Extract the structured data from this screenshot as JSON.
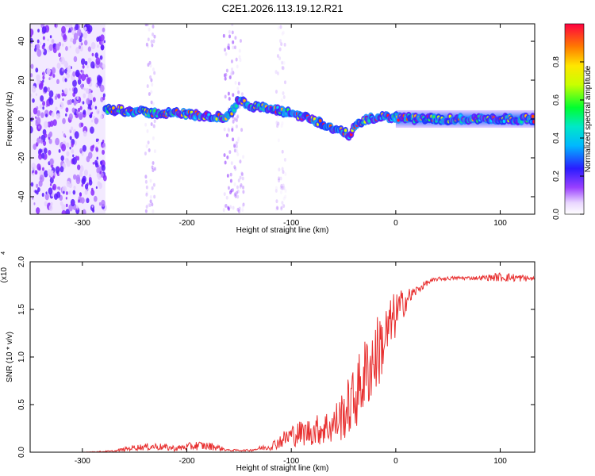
{
  "title": "C2E1.2026.113.19.12.R21",
  "colors": {
    "snr_line": "#e83030",
    "axis": "#000000",
    "background": "#ffffff"
  },
  "chart_data": [
    {
      "type": "heatmap",
      "name": "spectrogram",
      "xlabel": "Height of straight line (km)",
      "ylabel": "Frequency (Hz)",
      "xlim": [
        -350,
        133
      ],
      "ylim": [
        -49,
        49
      ],
      "x_ticks": [
        -300,
        -200,
        -100,
        0,
        100
      ],
      "y_ticks": [
        -40,
        -20,
        0,
        20,
        40
      ],
      "noise_region_x": [
        -350,
        -278
      ],
      "signal_track": {
        "x": [
          -278,
          -250,
          -230,
          -210,
          -190,
          -175,
          -160,
          -150,
          -140,
          -120,
          -100,
          -80,
          -60,
          -45,
          -35,
          -25,
          -15,
          0,
          20,
          60,
          100,
          133
        ],
        "freq": [
          5,
          4,
          3,
          3,
          2,
          1,
          1,
          10,
          7,
          5,
          3,
          0,
          -5,
          -8,
          -2,
          0,
          1,
          1,
          0,
          0,
          0,
          0
        ]
      },
      "colorbar": {
        "label": "Normalized spectral amplitude",
        "range": [
          0,
          1
        ],
        "ticks": [
          0.0,
          0.2,
          0.4,
          0.6,
          0.8
        ]
      }
    },
    {
      "type": "line",
      "name": "snr",
      "xlabel": "Height of straight line (km)",
      "ylabel": "SNR (10 * v/v)",
      "multiplier_label": "(x10",
      "multiplier_exp": "4",
      "xlim": [
        -350,
        133
      ],
      "ylim": [
        0,
        2.0
      ],
      "x_ticks": [
        -300,
        -200,
        -100,
        0,
        100
      ],
      "y_ticks": [
        0.0,
        0.5,
        1.0,
        1.5,
        2.0
      ],
      "series": [
        {
          "name": "SNR",
          "x": [
            -350,
            -300,
            -270,
            -250,
            -230,
            -210,
            -190,
            -175,
            -160,
            -140,
            -120,
            -110,
            -100,
            -90,
            -80,
            -70,
            -60,
            -50,
            -40,
            -30,
            -20,
            -10,
            0,
            10,
            20,
            30,
            40,
            60,
            80,
            100,
            120,
            133
          ],
          "values": [
            0.0,
            0.0,
            0.01,
            0.05,
            0.06,
            0.04,
            0.07,
            0.06,
            0.02,
            0.02,
            0.06,
            0.12,
            0.18,
            0.2,
            0.22,
            0.25,
            0.28,
            0.4,
            0.55,
            0.8,
            1.0,
            1.2,
            1.45,
            1.6,
            1.7,
            1.78,
            1.82,
            1.83,
            1.83,
            1.84,
            1.83,
            1.82
          ],
          "noise": [
            0.0,
            0.0,
            0.01,
            0.03,
            0.04,
            0.03,
            0.05,
            0.04,
            0.01,
            0.01,
            0.04,
            0.08,
            0.12,
            0.14,
            0.15,
            0.18,
            0.2,
            0.28,
            0.35,
            0.4,
            0.42,
            0.35,
            0.25,
            0.12,
            0.05,
            0.03,
            0.02,
            0.02,
            0.02,
            0.05,
            0.04,
            0.02
          ]
        }
      ]
    }
  ]
}
